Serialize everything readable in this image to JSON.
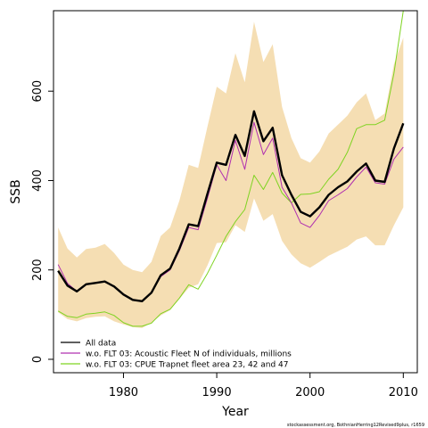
{
  "chart_data": {
    "type": "line",
    "xlabel": "Year",
    "ylabel": "SSB",
    "xlim": [
      1972.5,
      2011.5
    ],
    "ylim": [
      -30,
      780
    ],
    "x_ticks": [
      1980,
      1990,
      2000,
      2010
    ],
    "y_ticks": [
      0,
      200,
      400,
      600
    ],
    "x": [
      1973,
      1974,
      1975,
      1976,
      1977,
      1978,
      1979,
      1980,
      1981,
      1982,
      1983,
      1984,
      1985,
      1986,
      1987,
      1988,
      1989,
      1990,
      1991,
      1992,
      1993,
      1994,
      1995,
      1996,
      1997,
      1998,
      1999,
      2000,
      2001,
      2002,
      2003,
      2004,
      2005,
      2006,
      2007,
      2008,
      2009,
      2010
    ],
    "band": {
      "color": "#f5deb3",
      "lower": [
        105,
        90,
        85,
        92,
        95,
        96,
        85,
        78,
        72,
        70,
        82,
        98,
        110,
        135,
        160,
        168,
        210,
        260,
        262,
        300,
        285,
        360,
        310,
        325,
        265,
        235,
        215,
        205,
        218,
        232,
        242,
        252,
        268,
        275,
        255,
        255,
        300,
        340
      ],
      "upper": [
        295,
        248,
        228,
        247,
        250,
        258,
        238,
        212,
        200,
        195,
        218,
        276,
        295,
        355,
        435,
        428,
        520,
        610,
        595,
        685,
        620,
        755,
        665,
        705,
        565,
        495,
        450,
        440,
        465,
        505,
        525,
        545,
        575,
        595,
        535,
        550,
        660,
        720
      ]
    },
    "series": [
      {
        "name": "All data",
        "color": "#000000",
        "width": 2.4,
        "values": [
          198,
          165,
          152,
          168,
          171,
          174,
          163,
          145,
          133,
          130,
          149,
          188,
          203,
          248,
          302,
          298,
          370,
          440,
          435,
          502,
          455,
          555,
          488,
          518,
          412,
          368,
          330,
          320,
          340,
          368,
          385,
          398,
          420,
          438,
          400,
          397,
          472,
          528
        ]
      },
      {
        "name": "w.o. FLT 03: Acoustic Fleet  N of individuals, millions",
        "color": "#b030b0",
        "width": 1,
        "values": [
          212,
          170,
          152,
          168,
          171,
          174,
          163,
          145,
          133,
          130,
          149,
          185,
          200,
          243,
          295,
          290,
          360,
          435,
          400,
          490,
          425,
          530,
          458,
          495,
          385,
          350,
          305,
          295,
          322,
          355,
          368,
          382,
          408,
          430,
          395,
          392,
          448,
          475
        ]
      },
      {
        "name": "w.o. FLT 03: CPUE Trapnet fleet area 23, 42 and 47",
        "color": "#7ed321",
        "width": 1,
        "values": [
          108,
          96,
          93,
          101,
          103,
          106,
          98,
          82,
          74,
          74,
          81,
          102,
          112,
          137,
          167,
          157,
          192,
          233,
          275,
          308,
          335,
          412,
          380,
          418,
          372,
          350,
          369,
          370,
          375,
          403,
          425,
          463,
          516,
          525,
          525,
          535,
          640,
          780
        ]
      }
    ],
    "legend_position": "bottom-left"
  },
  "footer": "stockassessment.org, BothnianHerring12Revised9plus, r1659"
}
